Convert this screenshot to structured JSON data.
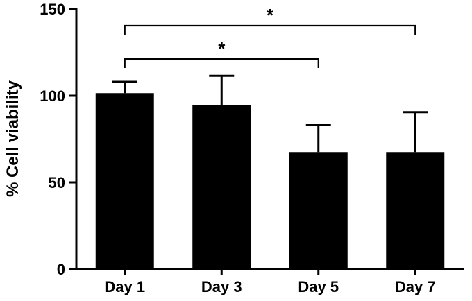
{
  "chart_data": {
    "type": "bar",
    "title": "",
    "xlabel": "",
    "ylabel": "% Cell viability",
    "categories": [
      "Day 1",
      "Day 3",
      "Day 5",
      "Day 7"
    ],
    "values": [
      101.5,
      94.5,
      67.5,
      67.5
    ],
    "error_upper": [
      6.5,
      17,
      15.5,
      23
    ],
    "ylim": [
      0,
      150
    ],
    "yticks": [
      "0",
      "50",
      "100",
      "150"
    ],
    "grid": false,
    "bar_color": "#000000",
    "significance": [
      {
        "from": "Day 1",
        "to": "Day 5",
        "label": "*"
      },
      {
        "from": "Day 1",
        "to": "Day 7",
        "label": "*"
      }
    ]
  }
}
